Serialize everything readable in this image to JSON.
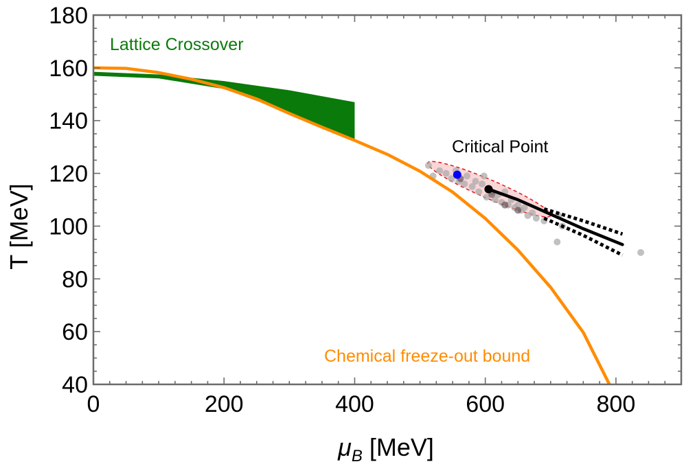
{
  "chart_data": {
    "type": "line",
    "xlabel_symbol": "μ",
    "xlabel_sub": "B",
    "xlabel_unit": " [MeV]",
    "ylabel": "T [MeV]",
    "xlim": [
      0,
      900
    ],
    "ylim": [
      40,
      180
    ],
    "xticks": [
      0,
      200,
      400,
      600,
      800
    ],
    "yticks": [
      40,
      60,
      80,
      100,
      120,
      140,
      160,
      180
    ],
    "colors": {
      "lattice": "#0a7a0a",
      "freezeout": "#ff8c00",
      "cp_ellipse_fill": "#f7c9cc",
      "cp_ellipse_stroke": "#e02020",
      "scatter": "#a9a9a9",
      "best_fit": "#0000ff",
      "line": "#000000"
    },
    "series": [
      {
        "name": "Lattice Crossover",
        "kind": "band",
        "x": [
          0,
          100,
          200,
          300,
          400
        ],
        "lower": [
          157,
          156,
          152,
          143,
          133
        ],
        "upper": [
          158.5,
          157.5,
          155,
          151.5,
          147
        ]
      },
      {
        "name": "Chemical freeze-out bound",
        "kind": "line",
        "x": [
          0,
          50,
          100,
          150,
          200,
          250,
          300,
          350,
          400,
          450,
          500,
          550,
          600,
          650,
          700,
          750,
          790
        ],
        "y": [
          160,
          159.8,
          158.2,
          155.7,
          152.5,
          148.2,
          142.7,
          137.5,
          132.5,
          127.2,
          120.8,
          112.9,
          102.9,
          90.9,
          76.8,
          59.7,
          40
        ]
      },
      {
        "name": "Critical Point line",
        "kind": "line",
        "x": [
          605,
          650,
          700,
          750,
          810
        ],
        "y": [
          114,
          110,
          104.5,
          99,
          93
        ]
      },
      {
        "name": "Critical Point upper bound",
        "kind": "dotted",
        "x": [
          690,
          750,
          810
        ],
        "y": [
          106.5,
          102,
          97
        ]
      },
      {
        "name": "Critical Point lower bound",
        "kind": "dotted",
        "x": [
          690,
          750,
          810
        ],
        "y": [
          103,
          96.5,
          89
        ]
      }
    ],
    "critical_point": {
      "label": "Critical Point",
      "center": [
        605,
        114
      ],
      "best": [
        557,
        119.5
      ],
      "ellipse_tips": [
        [
          512,
          124
        ],
        [
          700,
          104
        ]
      ],
      "ellipse_semi_minor_T": 3.5,
      "samples": [
        [
          513,
          123
        ],
        [
          520,
          119
        ],
        [
          530,
          121
        ],
        [
          540,
          120
        ],
        [
          548,
          118
        ],
        [
          555,
          121
        ],
        [
          560,
          117
        ],
        [
          568,
          116
        ],
        [
          572,
          119
        ],
        [
          580,
          115
        ],
        [
          585,
          117
        ],
        [
          590,
          113
        ],
        [
          595,
          116
        ],
        [
          598,
          119
        ],
        [
          602,
          111
        ],
        [
          610,
          113
        ],
        [
          615,
          110
        ],
        [
          620,
          112
        ],
        [
          625,
          109
        ],
        [
          630,
          113
        ],
        [
          635,
          108
        ],
        [
          640,
          110
        ],
        [
          645,
          107
        ],
        [
          650,
          108
        ],
        [
          655,
          106
        ],
        [
          660,
          107
        ],
        [
          665,
          104
        ],
        [
          672,
          105
        ],
        [
          678,
          103
        ],
        [
          690,
          102
        ],
        [
          712,
          104
        ],
        [
          718,
          100
        ],
        [
          710,
          94
        ],
        [
          838,
          90
        ]
      ],
      "dark_samples": [
        [
          562,
          118
        ],
        [
          610,
          112
        ],
        [
          630,
          108
        ],
        [
          650,
          106
        ]
      ]
    },
    "annotations": {
      "lattice": "Lattice Crossover",
      "freezeout": "Chemical freeze-out bound",
      "critical": "Critical Point"
    }
  }
}
